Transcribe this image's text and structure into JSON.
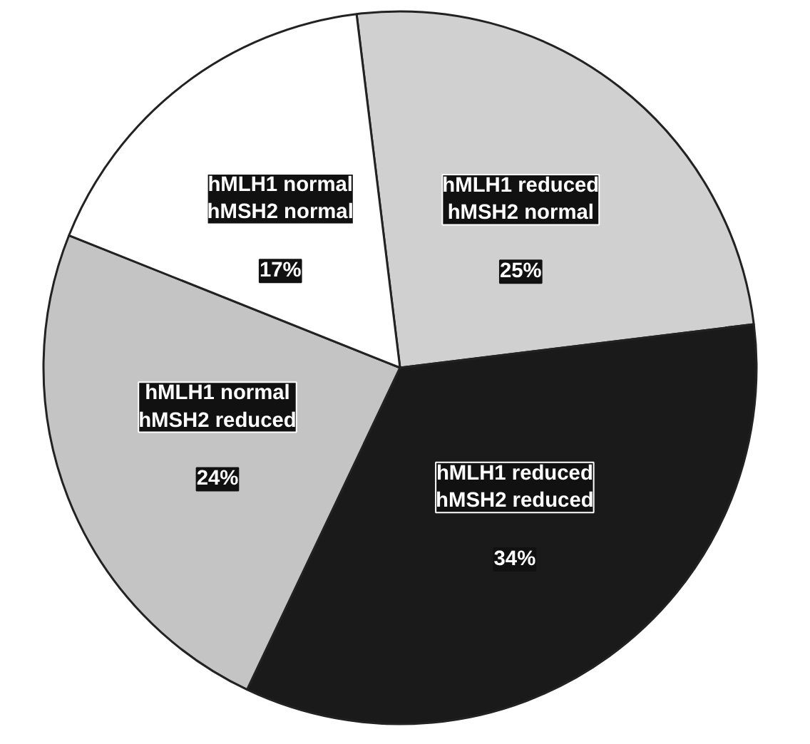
{
  "chart_data": {
    "type": "pie",
    "categories": [
      "hMLH1 reduced\nhMSH2 normal",
      "hMLH1 reduced\nhMSH2 reduced",
      "hMLH1 normal\nhMSH2 reduced",
      "hMLH1 normal\nhMSH2 normal"
    ],
    "values": [
      25,
      34,
      24,
      17
    ],
    "colors": [
      "#d0d0d0",
      "#1a1a1a",
      "#c4c4c4",
      "#ffffff"
    ],
    "value_labels": [
      "25%",
      "34%",
      "24%",
      "17%"
    ]
  }
}
